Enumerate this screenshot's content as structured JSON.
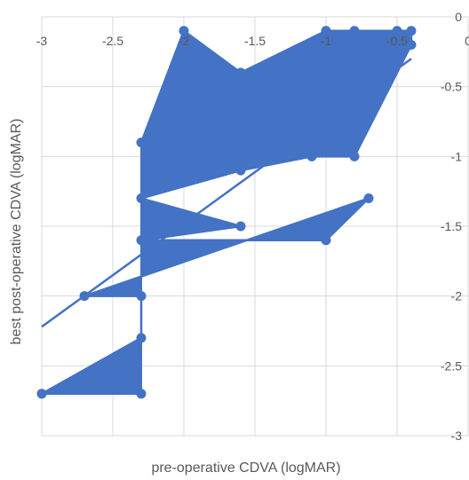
{
  "chart_data": {
    "type": "scatter",
    "xlabel": "pre-operative CDVA (logMAR)",
    "ylabel": "best post-operative CDVA (logMAR)",
    "xlim": [
      -3,
      0
    ],
    "ylim": [
      -3,
      0
    ],
    "x_ticks": [
      -3,
      -2.5,
      -2,
      -1.5,
      -1,
      -0.5,
      0
    ],
    "y_ticks": [
      0,
      -0.5,
      -1,
      -1.5,
      -2,
      -2.5,
      -3
    ],
    "x_tick_labels": [
      "-3",
      "-2.5",
      "-2",
      "-1.5",
      "-1",
      "-0.5",
      "0"
    ],
    "y_tick_labels": [
      "0",
      "-0.5",
      "-1",
      "-1.5",
      "-2",
      "-2.5",
      "-3"
    ],
    "x_axis_position": "top",
    "y_axis_position": "right",
    "grid": true,
    "series_color": "#4472c4",
    "points": [
      {
        "x": -2.3,
        "y": -0.9
      },
      {
        "x": -2.0,
        "y": -0.1
      },
      {
        "x": -1.6,
        "y": -0.4
      },
      {
        "x": -1.0,
        "y": -0.1
      },
      {
        "x": -0.8,
        "y": -0.1
      },
      {
        "x": -0.5,
        "y": -0.1
      },
      {
        "x": -0.4,
        "y": -0.1
      },
      {
        "x": -0.4,
        "y": -0.2
      },
      {
        "x": -0.8,
        "y": -1.0
      },
      {
        "x": -1.1,
        "y": -1.0
      },
      {
        "x": -1.6,
        "y": -1.1
      },
      {
        "x": -2.3,
        "y": -1.3
      },
      {
        "x": -1.6,
        "y": -1.5
      },
      {
        "x": -2.3,
        "y": -1.6
      },
      {
        "x": -1.0,
        "y": -1.6
      },
      {
        "x": -0.7,
        "y": -1.3
      },
      {
        "x": -2.7,
        "y": -2.0
      },
      {
        "x": -2.3,
        "y": -2.0
      },
      {
        "x": -2.3,
        "y": -2.3
      },
      {
        "x": -3.0,
        "y": -2.7
      },
      {
        "x": -2.3,
        "y": -2.7
      }
    ],
    "trendline": {
      "x": [
        -3.0,
        -0.4
      ],
      "y": [
        -2.22,
        -0.3
      ]
    }
  }
}
